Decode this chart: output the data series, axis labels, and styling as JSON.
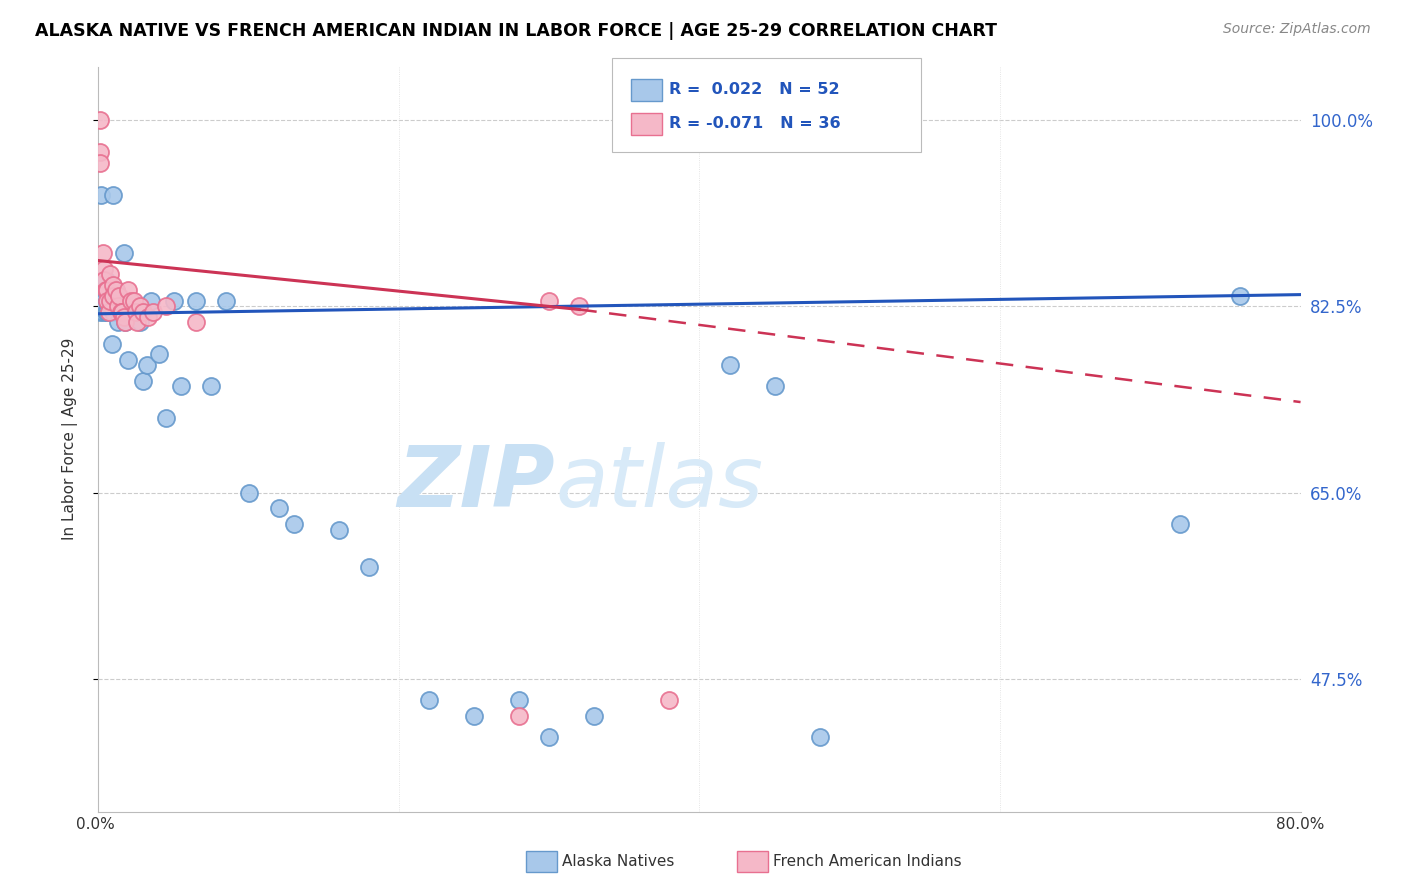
{
  "title": "ALASKA NATIVE VS FRENCH AMERICAN INDIAN IN LABOR FORCE | AGE 25-29 CORRELATION CHART",
  "source": "Source: ZipAtlas.com",
  "ylabel": "In Labor Force | Age 25-29",
  "watermark_zip": "ZIP",
  "watermark_atlas": "atlas",
  "legend_blue_label": "Alaska Natives",
  "legend_pink_label": "French American Indians",
  "blue_R_text": "R =  0.022",
  "blue_N_text": "N = 52",
  "pink_R_text": "R = -0.071",
  "pink_N_text": "N = 36",
  "blue_x": [
    0.001,
    0.001,
    0.002,
    0.002,
    0.003,
    0.004,
    0.004,
    0.005,
    0.005,
    0.006,
    0.006,
    0.007,
    0.008,
    0.009,
    0.01,
    0.01,
    0.012,
    0.013,
    0.015,
    0.016,
    0.017,
    0.018,
    0.02,
    0.022,
    0.025,
    0.028,
    0.03,
    0.032,
    0.035,
    0.04,
    0.045,
    0.05,
    0.055,
    0.065,
    0.075,
    0.085,
    0.1,
    0.12,
    0.13,
    0.16,
    0.18,
    0.22,
    0.25,
    0.28,
    0.3,
    0.33,
    0.38,
    0.42,
    0.45,
    0.48,
    0.72,
    0.76
  ],
  "blue_y": [
    0.825,
    0.82,
    0.93,
    0.825,
    0.82,
    0.83,
    0.825,
    0.85,
    0.82,
    0.83,
    0.82,
    0.82,
    0.825,
    0.79,
    0.93,
    0.82,
    0.84,
    0.81,
    0.82,
    0.82,
    0.875,
    0.81,
    0.775,
    0.82,
    0.82,
    0.81,
    0.755,
    0.77,
    0.83,
    0.78,
    0.72,
    0.83,
    0.75,
    0.83,
    0.75,
    0.83,
    0.65,
    0.635,
    0.62,
    0.615,
    0.58,
    0.455,
    0.44,
    0.455,
    0.42,
    0.44,
    1.0,
    0.77,
    0.75,
    0.42,
    0.62,
    0.835
  ],
  "pink_x": [
    0.001,
    0.001,
    0.001,
    0.003,
    0.004,
    0.004,
    0.005,
    0.006,
    0.006,
    0.007,
    0.008,
    0.008,
    0.01,
    0.01,
    0.012,
    0.013,
    0.014,
    0.015,
    0.016,
    0.017,
    0.018,
    0.02,
    0.022,
    0.024,
    0.025,
    0.026,
    0.028,
    0.03,
    0.033,
    0.036,
    0.045,
    0.065,
    0.28,
    0.3,
    0.32,
    0.38
  ],
  "pink_y": [
    1.0,
    0.97,
    0.96,
    0.875,
    0.86,
    0.85,
    0.84,
    0.84,
    0.83,
    0.82,
    0.855,
    0.83,
    0.845,
    0.835,
    0.84,
    0.825,
    0.835,
    0.82,
    0.82,
    0.815,
    0.81,
    0.84,
    0.83,
    0.83,
    0.82,
    0.81,
    0.825,
    0.82,
    0.815,
    0.82,
    0.825,
    0.81,
    0.44,
    0.83,
    0.825,
    0.455
  ],
  "xmin": 0.0,
  "xmax": 0.8,
  "ymin": 0.35,
  "ymax": 1.05,
  "yticks": [
    1.0,
    0.825,
    0.65,
    0.475
  ],
  "ytick_labels": [
    "100.0%",
    "82.5%",
    "65.0%",
    "47.5%"
  ],
  "xtick_labels": [
    "0.0%",
    "",
    "",
    "",
    "80.0%"
  ],
  "blue_trend": [
    0.0,
    0.8,
    0.818,
    0.836
  ],
  "pink_solid": [
    0.0,
    0.32,
    0.868,
    0.822
  ],
  "pink_dash": [
    0.32,
    0.8,
    0.822,
    0.735
  ],
  "blue_scatter_color": "#a8c8ea",
  "blue_edge_color": "#6699cc",
  "pink_scatter_color": "#f5b8c8",
  "pink_edge_color": "#e87090",
  "blue_line_color": "#2255bb",
  "pink_line_color": "#cc3355",
  "grid_color": "#cccccc",
  "right_tick_color": "#3366cc"
}
